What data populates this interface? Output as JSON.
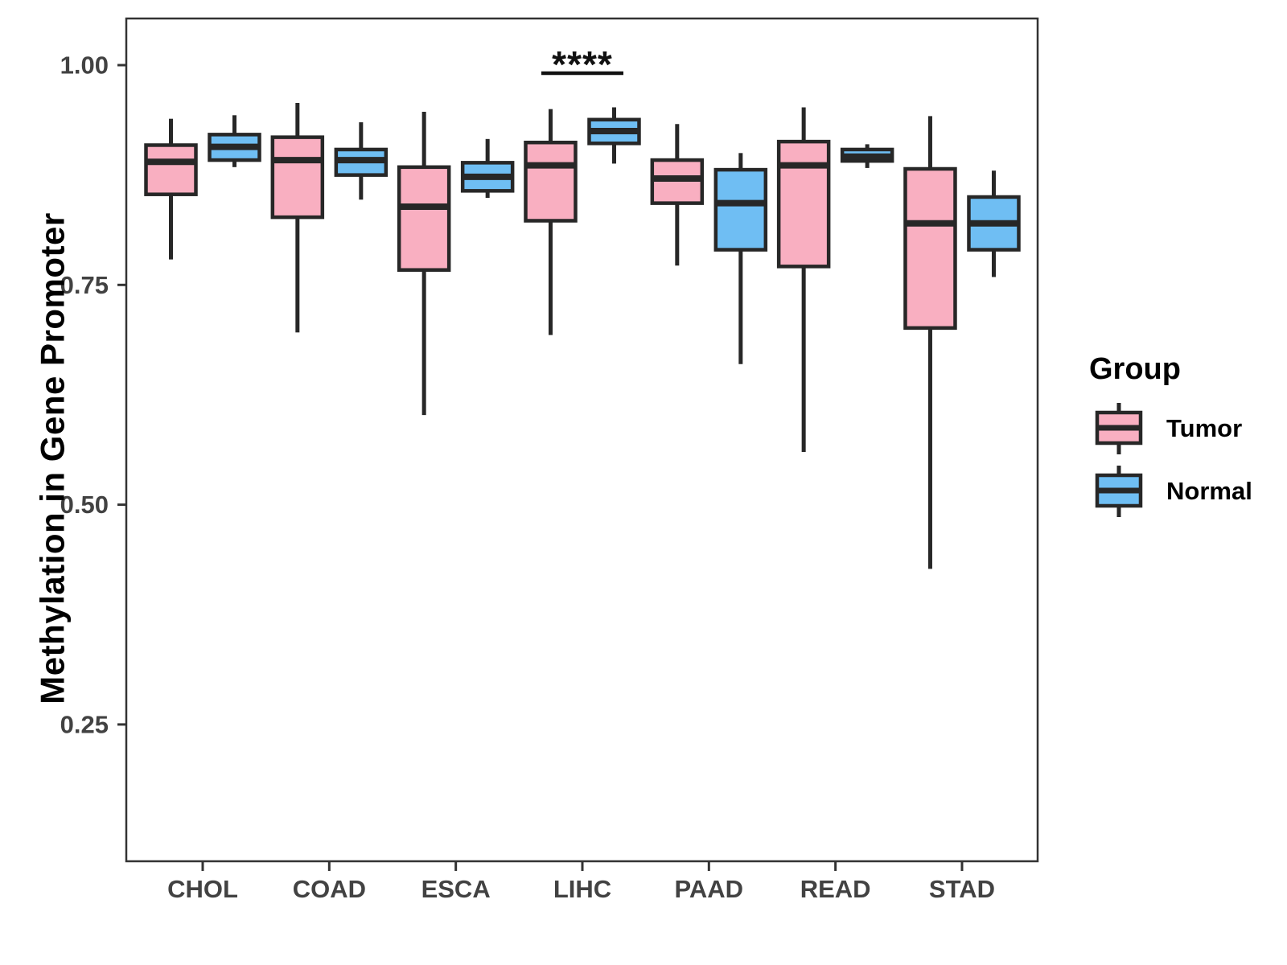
{
  "figure": {
    "background": "#FFFFFF",
    "grid": false
  },
  "legend": {
    "title": "Group",
    "position": "right"
  },
  "annotation": {
    "label": "****",
    "category": "LIHC"
  },
  "axes": {
    "y_tick_labels": [
      "1.00",
      "0.75",
      "0.50",
      "0.25"
    ],
    "x_tick_labels": [
      "CHOL",
      "COAD",
      "ESCA",
      "LIHC",
      "PAAD",
      "READ",
      "STAD"
    ]
  },
  "colors": {
    "tumor_fill": "#F9AFC1",
    "normal_fill": "#6FBEF3",
    "box_stroke": "#272727",
    "axis_line": "#333333",
    "tick_text": "#424242",
    "annotation_text": "#111111"
  },
  "chart_data": {
    "type": "boxplot",
    "title": "",
    "xlabel": "",
    "ylabel": "Methylation in Gene Promoter",
    "categories": [
      "CHOL",
      "COAD",
      "ESCA",
      "LIHC",
      "PAAD",
      "READ",
      "STAD"
    ],
    "y_ticks": [
      1.0,
      0.75,
      0.5,
      0.25
    ],
    "ylim": [
      0.09,
      1.05
    ],
    "grid": false,
    "legend_position": "right",
    "significance": [
      {
        "category": "LIHC",
        "label": "****",
        "between": [
          "Tumor",
          "Normal"
        ]
      }
    ],
    "series": [
      {
        "name": "Tumor",
        "color": "#F9AFC1",
        "data": [
          {
            "category": "CHOL",
            "whisker_low": 0.779,
            "q1": 0.853,
            "median": 0.89,
            "q3": 0.909,
            "whisker_high": 0.939
          },
          {
            "category": "COAD",
            "whisker_low": 0.696,
            "q1": 0.827,
            "median": 0.892,
            "q3": 0.918,
            "whisker_high": 0.957
          },
          {
            "category": "ESCA",
            "whisker_low": 0.602,
            "q1": 0.767,
            "median": 0.839,
            "q3": 0.884,
            "whisker_high": 0.947
          },
          {
            "category": "LIHC",
            "whisker_low": 0.693,
            "q1": 0.823,
            "median": 0.886,
            "q3": 0.912,
            "whisker_high": 0.95
          },
          {
            "category": "PAAD",
            "whisker_low": 0.772,
            "q1": 0.843,
            "median": 0.871,
            "q3": 0.892,
            "whisker_high": 0.933
          },
          {
            "category": "READ",
            "whisker_low": 0.56,
            "q1": 0.771,
            "median": 0.886,
            "q3": 0.913,
            "whisker_high": 0.952
          },
          {
            "category": "STAD",
            "whisker_low": 0.427,
            "q1": 0.701,
            "median": 0.82,
            "q3": 0.882,
            "whisker_high": 0.942
          }
        ]
      },
      {
        "name": "Normal",
        "color": "#6FBEF3",
        "data": [
          {
            "category": "CHOL",
            "whisker_low": 0.884,
            "q1": 0.892,
            "median": 0.907,
            "q3": 0.921,
            "whisker_high": 0.943
          },
          {
            "category": "COAD",
            "whisker_low": 0.847,
            "q1": 0.875,
            "median": 0.892,
            "q3": 0.904,
            "whisker_high": 0.935
          },
          {
            "category": "ESCA",
            "whisker_low": 0.849,
            "q1": 0.857,
            "median": 0.873,
            "q3": 0.889,
            "whisker_high": 0.916
          },
          {
            "category": "LIHC",
            "whisker_low": 0.888,
            "q1": 0.911,
            "median": 0.925,
            "q3": 0.938,
            "whisker_high": 0.952
          },
          {
            "category": "PAAD",
            "whisker_low": 0.66,
            "q1": 0.79,
            "median": 0.843,
            "q3": 0.881,
            "whisker_high": 0.9
          },
          {
            "category": "READ",
            "whisker_low": 0.883,
            "q1": 0.891,
            "median": 0.896,
            "q3": 0.904,
            "whisker_high": 0.91
          },
          {
            "category": "STAD",
            "whisker_low": 0.759,
            "q1": 0.79,
            "median": 0.82,
            "q3": 0.85,
            "whisker_high": 0.88
          }
        ]
      }
    ]
  }
}
